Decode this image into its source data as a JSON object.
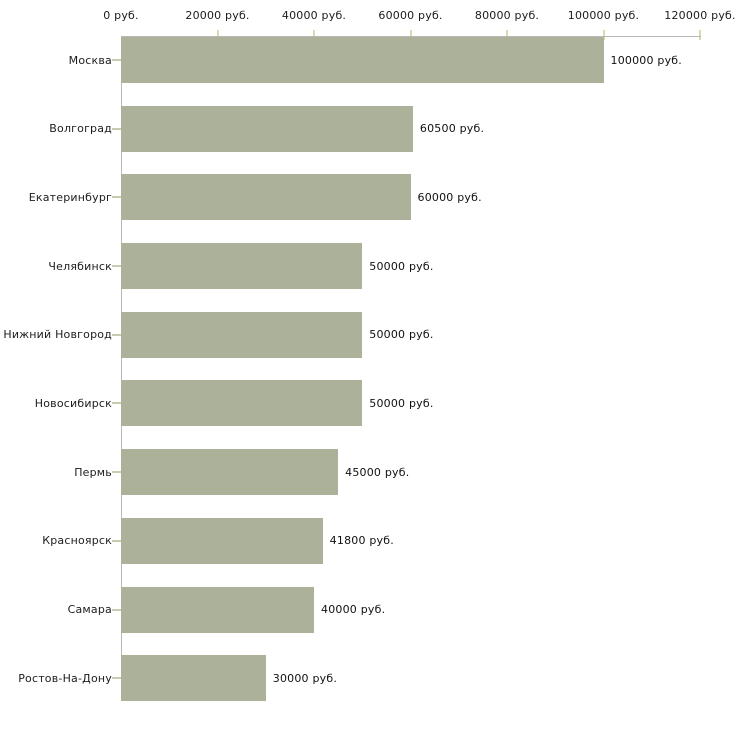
{
  "chart_data": {
    "type": "bar",
    "orientation": "horizontal",
    "title": "",
    "categories": [
      "Москва",
      "Волгоград",
      "Екатеринбург",
      "Челябинск",
      "Нижний Новгород",
      "Новосибирск",
      "Пермь",
      "Красноярск",
      "Самара",
      "Ростов-На-Дону"
    ],
    "values": [
      100000,
      60500,
      60000,
      50000,
      50000,
      50000,
      45000,
      41800,
      40000,
      30000
    ],
    "value_labels": [
      "100000 руб.",
      "60500 руб.",
      "60000 руб.",
      "50000 руб.",
      "50000 руб.",
      "50000 руб.",
      "45000 руб.",
      "41800 руб.",
      "40000 руб.",
      "30000 руб."
    ],
    "x_tick_values": [
      0,
      20000,
      40000,
      60000,
      80000,
      100000,
      120000
    ],
    "x_tick_labels": [
      "0 руб.",
      "20000 руб.",
      "40000 руб.",
      "60000 руб.",
      "80000 руб.",
      "100000 руб.",
      "120000 руб."
    ],
    "xlim": [
      0,
      120000
    ],
    "unit": "руб.",
    "xlabel": "",
    "ylabel": "",
    "grid": false,
    "legend": "none",
    "colors": {
      "bar": "#acb299",
      "axis": "#b9b9b9",
      "x_tick": "#d8dab0",
      "y_tick": "#c9cbb2",
      "text": "#1c1c1c"
    }
  }
}
